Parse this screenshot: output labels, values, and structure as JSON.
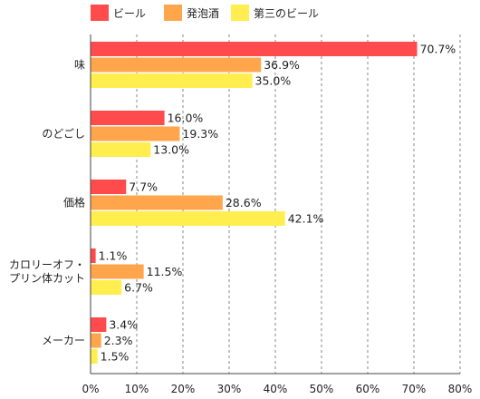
{
  "chart_data": {
    "type": "bar",
    "orientation": "horizontal",
    "categories": [
      [
        "味"
      ],
      [
        "のどごし"
      ],
      [
        "価格"
      ],
      [
        "カロリーオフ・",
        "プリン体カット"
      ],
      [
        "メーカー"
      ]
    ],
    "series": [
      {
        "name": "ビール",
        "color": "#ff4b4b",
        "values": [
          70.7,
          16.0,
          7.7,
          1.1,
          3.4
        ]
      },
      {
        "name": "発泡酒",
        "color": "#ffa64d",
        "values": [
          36.9,
          19.3,
          28.6,
          11.5,
          2.3
        ]
      },
      {
        "name": "第三のビール",
        "color": "#ffee4d",
        "values": [
          35.0,
          13.0,
          42.1,
          6.7,
          1.5
        ]
      }
    ],
    "x_ticks": [
      "0%",
      "10%",
      "20%",
      "30%",
      "40%",
      "50%",
      "60%",
      "70%",
      "80%"
    ],
    "xlim": [
      0,
      80
    ],
    "value_suffix": "%",
    "grid": "vertical-dashed",
    "legend_position": "top-left",
    "title": "",
    "xlabel": "",
    "ylabel": ""
  }
}
